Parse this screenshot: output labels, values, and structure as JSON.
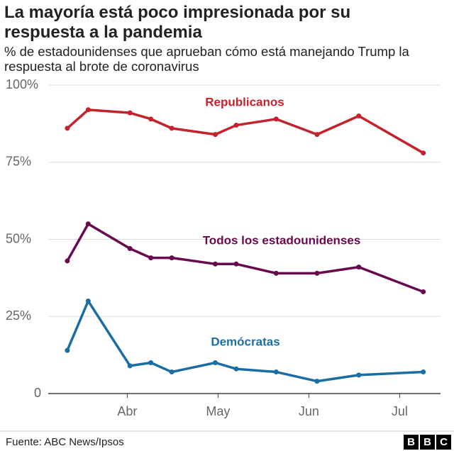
{
  "chart_data": {
    "type": "line",
    "title": "La mayoría está poco impresionada por su respuesta a la pandemia",
    "subtitle": "% de estadounidenses que aprueban cómo está manejando Trump la respuesta al brote de coronavirus",
    "x": [
      3.34,
      3.57,
      4.03,
      4.26,
      4.49,
      4.97,
      5.2,
      5.64,
      6.09,
      6.55,
      7.26
    ],
    "xlim": [
      3.13,
      7.45
    ],
    "xticks": [
      {
        "value": 4,
        "label": "Abr"
      },
      {
        "value": 5,
        "label": "May"
      },
      {
        "value": 6,
        "label": "Jun"
      },
      {
        "value": 7,
        "label": "Jul"
      }
    ],
    "ylim": [
      0,
      100
    ],
    "yticks": [
      0,
      {
        "value": 25,
        "label": "25%"
      },
      {
        "value": 50,
        "label": "50%"
      },
      {
        "value": 75,
        "label": "75%"
      },
      {
        "value": 100,
        "label": "100%"
      }
    ],
    "grid": true,
    "series": [
      {
        "name": "Republicanos",
        "color": "#c4232b",
        "values": [
          86,
          92,
          91,
          89,
          86,
          84,
          87,
          89,
          84,
          90,
          78
        ]
      },
      {
        "name": "Todos los estadounidenses",
        "color": "#6a0a4e",
        "values": [
          43,
          55,
          47,
          44,
          44,
          42,
          42,
          39,
          39,
          41,
          33
        ]
      },
      {
        "name": "Demócratas",
        "color": "#1a6ea3",
        "values": [
          14,
          30,
          9,
          10,
          7,
          10,
          8,
          7,
          4,
          6,
          7
        ]
      }
    ],
    "source": "Fuente: ABC News/Ipsos",
    "logo": [
      "B",
      "B",
      "C"
    ]
  }
}
